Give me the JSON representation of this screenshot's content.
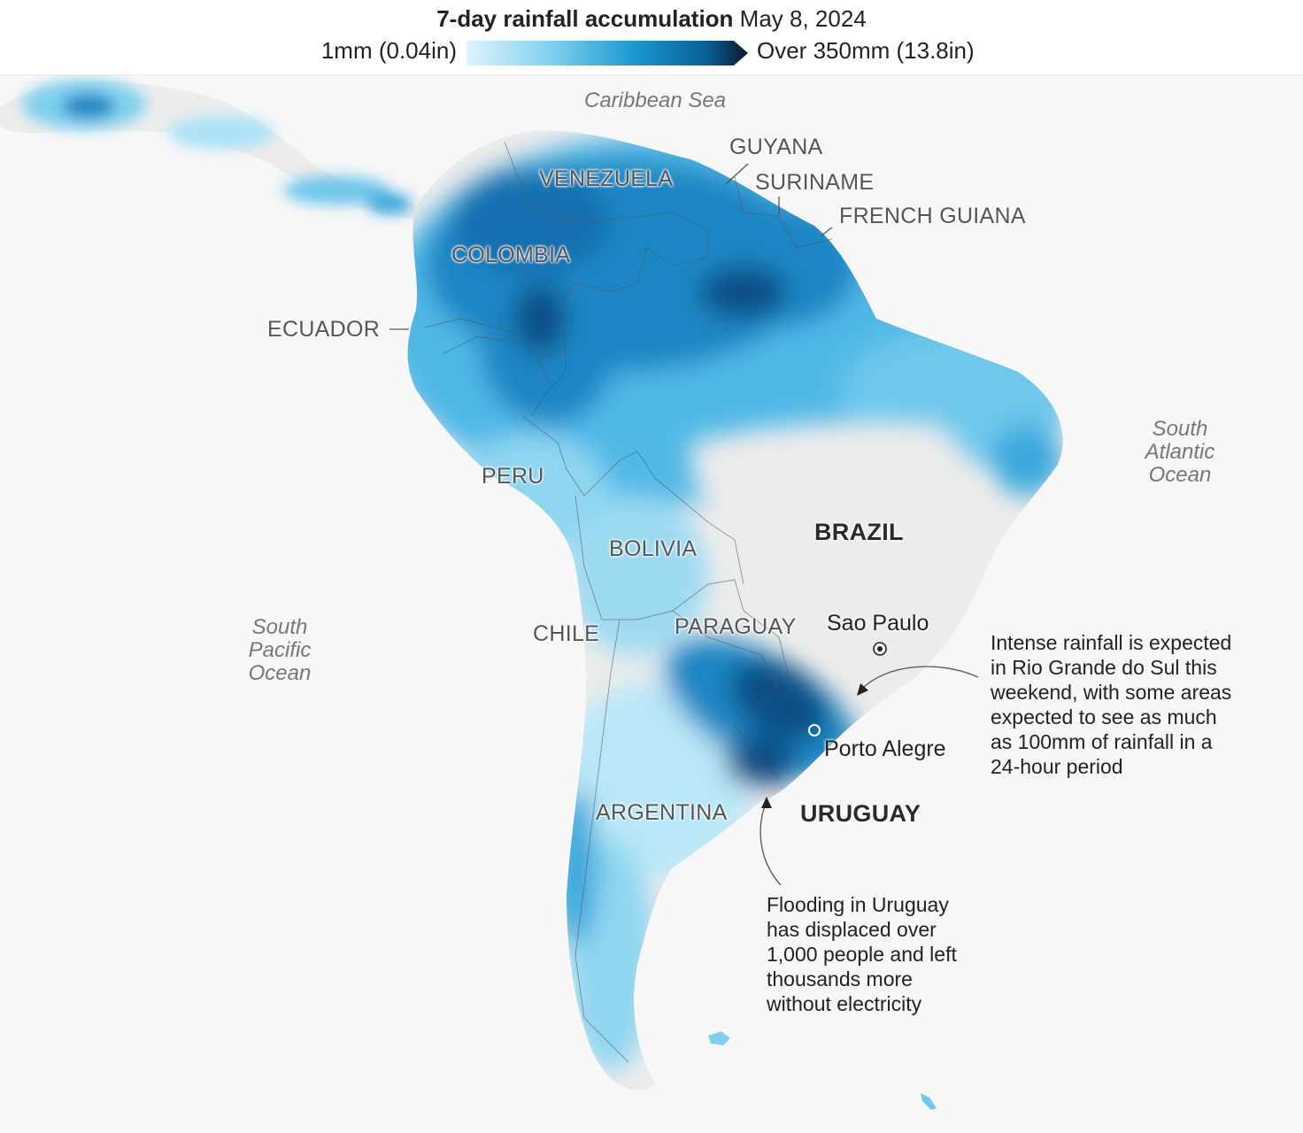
{
  "header": {
    "title_bold": "7-day rainfall accumulation",
    "title_date": "May 8, 2024",
    "legend_min": "1mm (0.04in)",
    "legend_max": "Over 350mm (13.8in)",
    "scale_colors": [
      "#dff4fc",
      "#7fd0ef",
      "#1a98d0",
      "#0a5f98",
      "#0b1b2e"
    ]
  },
  "oceans": {
    "caribbean": "Caribbean Sea",
    "south_atlantic": "South\nAtlantic\nOcean",
    "south_pacific": "South\nPacific\nOcean"
  },
  "countries": {
    "venezuela": "VENEZUELA",
    "guyana": "GUYANA",
    "suriname": "SURINAME",
    "french_guiana": "FRENCH GUIANA",
    "colombia": "COLOMBIA",
    "ecuador": "ECUADOR",
    "peru": "PERU",
    "bolivia": "BOLIVIA",
    "brazil": "BRAZIL",
    "paraguay": "PARAGUAY",
    "chile": "CHILE",
    "argentina": "ARGENTINA",
    "uruguay": "URUGUAY"
  },
  "cities": {
    "sao_paulo": "Sao Paulo",
    "porto_alegre": "Porto Alegre"
  },
  "annotations": {
    "rio_grande": "Intense rainfall is expected\nin Rio Grande do Sul this\nweekend, with some areas\nexpected to see as much\nas 100mm of rainfall in a\n24-hour period",
    "uruguay": "Flooding in Uruguay\nhas displaced over\n1,000 people and left\nthousands more\nwithout electricity"
  },
  "colors": {
    "land": "#ececec",
    "light_rain": "#bfe9f8",
    "medium_rain": "#4fb8e6",
    "heavy_rain": "#1a86c4",
    "very_heavy_rain": "#0a4f86"
  }
}
